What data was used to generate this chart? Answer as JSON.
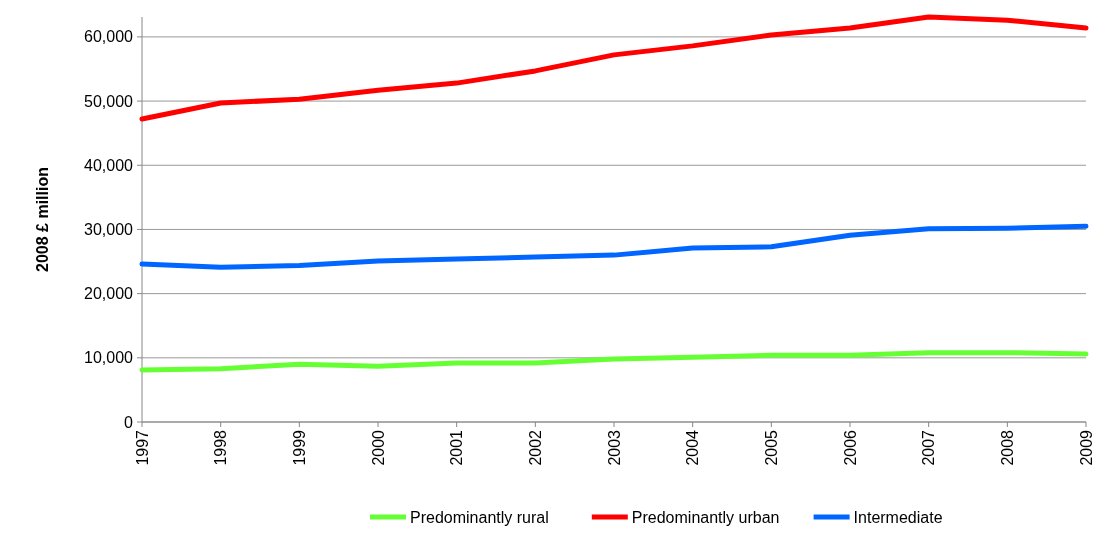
{
  "chart_data": {
    "type": "line",
    "ylabel": "2008 £ million",
    "x": [
      1997,
      1998,
      1999,
      2000,
      2001,
      2002,
      2003,
      2004,
      2005,
      2006,
      2007,
      2008,
      2009
    ],
    "xlim": [
      1997,
      2009
    ],
    "xticks": [
      1997,
      1998,
      1999,
      2000,
      2001,
      2002,
      2003,
      2004,
      2005,
      2006,
      2007,
      2008,
      2009
    ],
    "ylim": [
      0,
      63100
    ],
    "yticks": [
      0,
      {
        "value": 10000,
        "label": "10,000"
      },
      {
        "value": 20000,
        "label": "20,000"
      },
      {
        "value": 30000,
        "label": "30,000"
      },
      {
        "value": 40000,
        "label": "40,000"
      },
      {
        "value": 50000,
        "label": "50,000"
      },
      {
        "value": 60000,
        "label": "60,000"
      }
    ],
    "grid": "y",
    "legend": "bottom",
    "marker": "none",
    "line_style": "solid",
    "series": [
      {
        "name": "Predominantly rural",
        "color": "#66ff33",
        "values": [
          8100,
          8300,
          9000,
          8700,
          9200,
          9200,
          9800,
          10100,
          10400,
          10400,
          10800,
          10800,
          10600
        ]
      },
      {
        "name": "Predominantly urban",
        "color": "#ff0000",
        "values": [
          47200,
          49700,
          50300,
          51700,
          52800,
          54700,
          57200,
          58600,
          60300,
          61400,
          63100,
          62600,
          61400
        ]
      },
      {
        "name": "Intermediate",
        "color": "#0066ff",
        "values": [
          24600,
          24100,
          24400,
          25100,
          25400,
          25700,
          26000,
          27100,
          27300,
          29100,
          30100,
          30200,
          30500
        ]
      }
    ]
  }
}
